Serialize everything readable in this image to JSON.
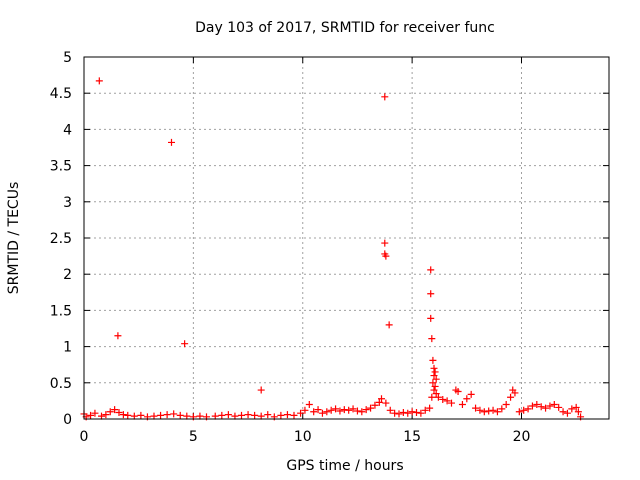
{
  "chart_data": {
    "type": "scatter",
    "title": "Day 103 of 2017, SRMTID for receiver func",
    "xlabel": "GPS time / hours",
    "ylabel": "SRMTID / TECUs",
    "xlim": [
      0,
      24
    ],
    "ylim": [
      0,
      5
    ],
    "xticks": [
      0,
      5,
      10,
      15,
      20
    ],
    "xtick_labels": [
      "0",
      "5",
      "10",
      "15",
      "20"
    ],
    "yticks": [
      0,
      0.5,
      1,
      1.5,
      2,
      2.5,
      3,
      3.5,
      4,
      4.5,
      5
    ],
    "ytick_labels": [
      "0",
      "0.5",
      "1",
      "1.5",
      "2",
      "2.5",
      "3",
      "3.5",
      "4",
      "4.5",
      "5"
    ],
    "grid": true,
    "marker": "+",
    "color": "#ff0000",
    "series": [
      {
        "name": "SRMTID",
        "points": [
          [
            0.7,
            4.67
          ],
          [
            4.0,
            3.82
          ],
          [
            13.75,
            4.45
          ],
          [
            1.55,
            1.15
          ],
          [
            4.6,
            1.04
          ],
          [
            8.1,
            0.4
          ],
          [
            13.75,
            2.43
          ],
          [
            13.75,
            2.28
          ],
          [
            13.8,
            2.25
          ],
          [
            13.95,
            1.3
          ],
          [
            15.85,
            2.06
          ],
          [
            15.85,
            1.73
          ],
          [
            15.85,
            1.39
          ],
          [
            15.9,
            1.11
          ],
          [
            15.95,
            0.81
          ],
          [
            16.0,
            0.7
          ],
          [
            16.05,
            0.65
          ],
          [
            16.0,
            0.6
          ],
          [
            16.1,
            0.55
          ],
          [
            15.95,
            0.5
          ],
          [
            16.05,
            0.45
          ],
          [
            16.0,
            0.4
          ],
          [
            16.1,
            0.35
          ],
          [
            15.9,
            0.3
          ],
          [
            0.0,
            0.07
          ],
          [
            0.1,
            0.03
          ],
          [
            0.3,
            0.05
          ],
          [
            0.5,
            0.08
          ],
          [
            0.8,
            0.04
          ],
          [
            1.0,
            0.06
          ],
          [
            1.2,
            0.1
          ],
          [
            1.4,
            0.13
          ],
          [
            1.6,
            0.09
          ],
          [
            1.8,
            0.06
          ],
          [
            2.0,
            0.05
          ],
          [
            2.3,
            0.04
          ],
          [
            2.6,
            0.05
          ],
          [
            2.9,
            0.03
          ],
          [
            3.2,
            0.04
          ],
          [
            3.5,
            0.05
          ],
          [
            3.8,
            0.06
          ],
          [
            4.1,
            0.07
          ],
          [
            4.4,
            0.05
          ],
          [
            4.7,
            0.04
          ],
          [
            5.0,
            0.03
          ],
          [
            5.3,
            0.04
          ],
          [
            5.6,
            0.03
          ],
          [
            6.0,
            0.04
          ],
          [
            6.3,
            0.05
          ],
          [
            6.6,
            0.06
          ],
          [
            6.9,
            0.04
          ],
          [
            7.2,
            0.05
          ],
          [
            7.5,
            0.06
          ],
          [
            7.8,
            0.05
          ],
          [
            8.1,
            0.04
          ],
          [
            8.4,
            0.06
          ],
          [
            8.7,
            0.03
          ],
          [
            9.0,
            0.05
          ],
          [
            9.3,
            0.06
          ],
          [
            9.6,
            0.05
          ],
          [
            9.9,
            0.08
          ],
          [
            10.1,
            0.12
          ],
          [
            10.3,
            0.2
          ],
          [
            10.5,
            0.1
          ],
          [
            10.7,
            0.13
          ],
          [
            10.9,
            0.08
          ],
          [
            11.1,
            0.1
          ],
          [
            11.3,
            0.12
          ],
          [
            11.5,
            0.14
          ],
          [
            11.7,
            0.11
          ],
          [
            11.9,
            0.13
          ],
          [
            12.1,
            0.12
          ],
          [
            12.3,
            0.14
          ],
          [
            12.5,
            0.11
          ],
          [
            12.7,
            0.1
          ],
          [
            12.9,
            0.13
          ],
          [
            13.1,
            0.15
          ],
          [
            13.3,
            0.19
          ],
          [
            13.5,
            0.23
          ],
          [
            13.6,
            0.28
          ],
          [
            13.8,
            0.22
          ],
          [
            14.0,
            0.12
          ],
          [
            14.2,
            0.08
          ],
          [
            14.4,
            0.07
          ],
          [
            14.6,
            0.09
          ],
          [
            14.8,
            0.08
          ],
          [
            15.0,
            0.1
          ],
          [
            15.2,
            0.09
          ],
          [
            15.4,
            0.08
          ],
          [
            15.6,
            0.12
          ],
          [
            15.8,
            0.15
          ],
          [
            16.2,
            0.3
          ],
          [
            16.4,
            0.27
          ],
          [
            16.6,
            0.25
          ],
          [
            16.8,
            0.22
          ],
          [
            17.0,
            0.4
          ],
          [
            17.1,
            0.38
          ],
          [
            17.3,
            0.2
          ],
          [
            17.5,
            0.28
          ],
          [
            17.7,
            0.34
          ],
          [
            17.9,
            0.15
          ],
          [
            18.1,
            0.12
          ],
          [
            18.3,
            0.1
          ],
          [
            18.5,
            0.11
          ],
          [
            18.7,
            0.12
          ],
          [
            18.9,
            0.1
          ],
          [
            19.1,
            0.14
          ],
          [
            19.3,
            0.2
          ],
          [
            19.5,
            0.3
          ],
          [
            19.6,
            0.4
          ],
          [
            19.7,
            0.36
          ],
          [
            19.9,
            0.1
          ],
          [
            20.1,
            0.12
          ],
          [
            20.3,
            0.14
          ],
          [
            20.5,
            0.18
          ],
          [
            20.7,
            0.2
          ],
          [
            20.9,
            0.17
          ],
          [
            21.1,
            0.15
          ],
          [
            21.3,
            0.18
          ],
          [
            21.5,
            0.2
          ],
          [
            21.7,
            0.16
          ],
          [
            21.9,
            0.1
          ],
          [
            22.1,
            0.08
          ],
          [
            22.3,
            0.14
          ],
          [
            22.5,
            0.16
          ],
          [
            22.6,
            0.1
          ],
          [
            22.7,
            0.03
          ]
        ]
      }
    ]
  }
}
